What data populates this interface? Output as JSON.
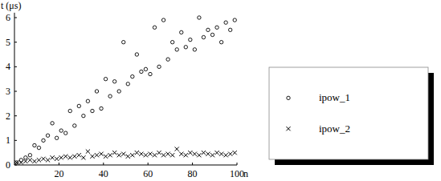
{
  "chart_data": {
    "type": "scatter",
    "y_label": "t (μs)",
    "x_label": "n",
    "x": [
      1,
      3,
      5,
      7,
      9,
      11,
      13,
      15,
      17,
      19,
      21,
      23,
      25,
      27,
      29,
      31,
      33,
      35,
      37,
      39,
      41,
      43,
      45,
      47,
      49,
      51,
      53,
      55,
      57,
      59,
      61,
      63,
      65,
      67,
      69,
      71,
      73,
      75,
      77,
      79,
      81,
      83,
      85,
      87,
      89,
      91,
      93,
      95,
      97,
      99
    ],
    "series": [
      {
        "name": "ipow_1",
        "color": "#000000",
        "marker": "circle",
        "values": [
          0.1,
          0.2,
          0.3,
          0.4,
          0.8,
          0.7,
          1.0,
          1.2,
          1.7,
          1.1,
          1.4,
          1.3,
          2.2,
          1.6,
          2.4,
          2.0,
          2.6,
          2.2,
          3.0,
          2.3,
          3.5,
          2.8,
          3.4,
          3.0,
          5.0,
          3.3,
          3.6,
          4.5,
          3.8,
          3.9,
          3.7,
          5.6,
          4.0,
          5.9,
          4.3,
          5.0,
          4.7,
          5.4,
          4.8,
          5.1,
          4.7,
          6.0,
          5.2,
          5.5,
          5.3,
          5.6,
          5.0,
          5.8,
          5.5,
          5.9
        ]
      },
      {
        "name": "ipow_2",
        "color": "#000000",
        "marker": "x",
        "values": [
          0.1,
          0.1,
          0.15,
          0.2,
          0.15,
          0.2,
          0.25,
          0.2,
          0.3,
          0.25,
          0.3,
          0.35,
          0.3,
          0.35,
          0.4,
          0.3,
          0.55,
          0.35,
          0.4,
          0.45,
          0.35,
          0.4,
          0.5,
          0.4,
          0.45,
          0.35,
          0.4,
          0.5,
          0.45,
          0.4,
          0.45,
          0.4,
          0.5,
          0.4,
          0.45,
          0.4,
          0.65,
          0.45,
          0.4,
          0.5,
          0.45,
          0.4,
          0.5,
          0.45,
          0.4,
          0.5,
          0.45,
          0.4,
          0.45,
          0.5
        ]
      }
    ],
    "xlim": [
      0,
      100
    ],
    "xticks": [
      20,
      40,
      60,
      80,
      100
    ],
    "ylim": [
      0,
      6.2
    ],
    "yticks": [
      0,
      1,
      2,
      3,
      4,
      5,
      6
    ],
    "grid": false,
    "legend": "right"
  }
}
